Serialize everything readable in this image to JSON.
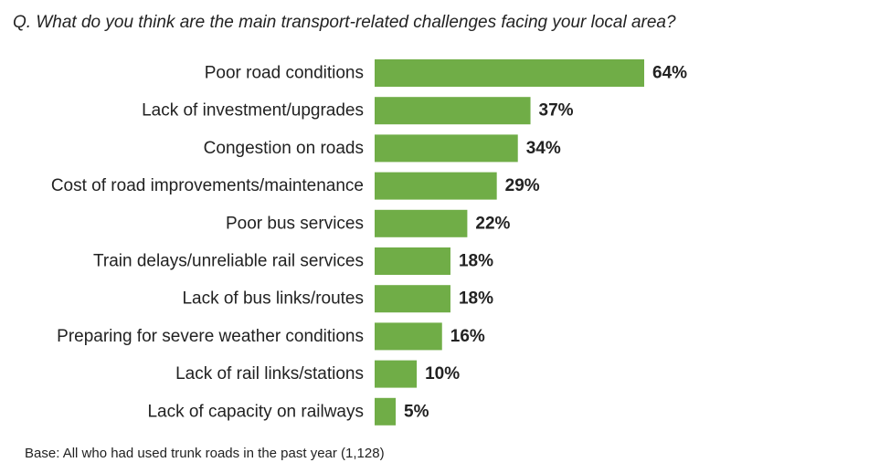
{
  "question": "Q. What do you think are the main transport-related challenges facing your local area?",
  "base_note": "Base: All who had used trunk roads in the past year (1,128)",
  "colors": {
    "bar": "#70ad47",
    "text": "#222222"
  },
  "chart_data": {
    "type": "bar",
    "orientation": "horizontal",
    "categories": [
      "Poor road conditions",
      "Lack of investment/upgrades",
      "Congestion on roads",
      "Cost of road improvements/maintenance",
      "Poor bus services",
      "Train delays/unreliable rail services",
      "Lack of bus links/routes",
      "Preparing for severe weather conditions",
      "Lack of rail links/stations",
      "Lack of capacity on railways"
    ],
    "values": [
      64,
      37,
      34,
      29,
      22,
      18,
      18,
      16,
      10,
      5
    ],
    "value_labels": [
      "64%",
      "37%",
      "34%",
      "29%",
      "22%",
      "18%",
      "18%",
      "16%",
      "10%",
      "5%"
    ],
    "title": "",
    "xlabel": "",
    "ylabel": "",
    "xlim": [
      0,
      100
    ],
    "grid": false,
    "legend": "none"
  }
}
